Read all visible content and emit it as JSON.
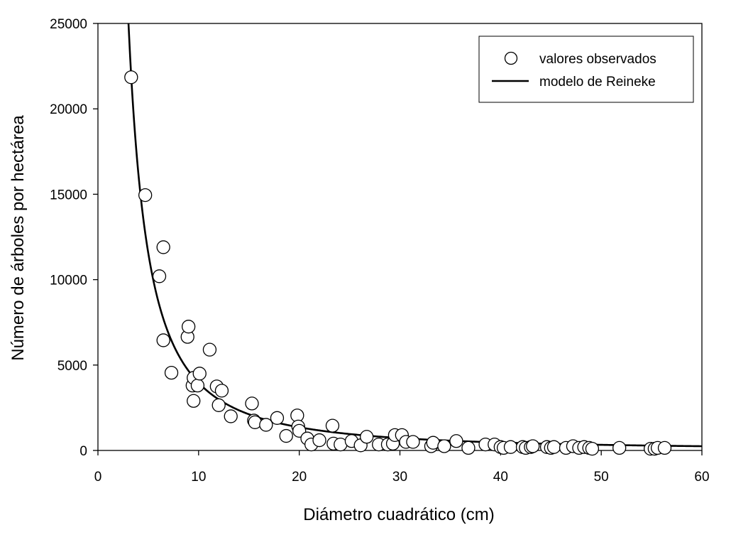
{
  "chart_data": {
    "type": "scatter",
    "title": "",
    "xlabel": "Diámetro cuadrático (cm)",
    "ylabel": "Número de árboles por hectárea",
    "xlim": [
      0,
      60
    ],
    "ylim": [
      0,
      25000
    ],
    "x_ticks": [
      "0",
      "10",
      "20",
      "30",
      "40",
      "50",
      "60"
    ],
    "y_ticks": [
      "0",
      "5000",
      "10000",
      "15000",
      "20000",
      "25000"
    ],
    "grid": false,
    "legend_position": "top-right",
    "series": [
      {
        "name": "valores observados",
        "kind": "scatter",
        "marker": "open-circle",
        "points": [
          [
            3.3,
            21850
          ],
          [
            4.7,
            14950
          ],
          [
            6.1,
            10200
          ],
          [
            6.5,
            11900
          ],
          [
            6.5,
            6450
          ],
          [
            7.3,
            4550
          ],
          [
            8.9,
            6650
          ],
          [
            9.0,
            7250
          ],
          [
            9.4,
            3800
          ],
          [
            9.5,
            4250
          ],
          [
            9.5,
            2900
          ],
          [
            9.9,
            3800
          ],
          [
            10.1,
            4500
          ],
          [
            11.1,
            5900
          ],
          [
            11.8,
            3750
          ],
          [
            12.0,
            2650
          ],
          [
            12.3,
            3500
          ],
          [
            13.2,
            2000
          ],
          [
            15.3,
            2750
          ],
          [
            15.5,
            1750
          ],
          [
            15.6,
            1650
          ],
          [
            16.7,
            1500
          ],
          [
            17.8,
            1900
          ],
          [
            18.7,
            850
          ],
          [
            19.8,
            2050
          ],
          [
            19.9,
            1400
          ],
          [
            20.0,
            1150
          ],
          [
            20.8,
            700
          ],
          [
            21.2,
            350
          ],
          [
            22.0,
            600
          ],
          [
            23.3,
            1450
          ],
          [
            23.4,
            400
          ],
          [
            24.1,
            350
          ],
          [
            25.2,
            550
          ],
          [
            26.1,
            300
          ],
          [
            26.7,
            800
          ],
          [
            27.9,
            350
          ],
          [
            28.8,
            350
          ],
          [
            29.3,
            400
          ],
          [
            29.5,
            900
          ],
          [
            30.2,
            900
          ],
          [
            30.6,
            500
          ],
          [
            31.3,
            500
          ],
          [
            33.1,
            250
          ],
          [
            33.3,
            450
          ],
          [
            34.4,
            250
          ],
          [
            35.6,
            550
          ],
          [
            36.8,
            150
          ],
          [
            38.5,
            350
          ],
          [
            39.4,
            350
          ],
          [
            40.0,
            200
          ],
          [
            40.3,
            150
          ],
          [
            41.0,
            200
          ],
          [
            42.2,
            200
          ],
          [
            42.5,
            150
          ],
          [
            43.0,
            200
          ],
          [
            43.2,
            250
          ],
          [
            44.6,
            200
          ],
          [
            45.0,
            150
          ],
          [
            45.3,
            200
          ],
          [
            46.5,
            150
          ],
          [
            47.2,
            250
          ],
          [
            47.8,
            150
          ],
          [
            48.3,
            200
          ],
          [
            48.8,
            150
          ],
          [
            49.1,
            100
          ],
          [
            51.8,
            150
          ],
          [
            54.9,
            100
          ],
          [
            55.3,
            100
          ],
          [
            55.6,
            150
          ],
          [
            56.3,
            150
          ]
        ]
      },
      {
        "name": "modelo de Reineke",
        "kind": "line",
        "model": "N = a * D^b",
        "a": 138900,
        "b": -1.545,
        "x_range": [
          3.2,
          60
        ]
      }
    ]
  }
}
